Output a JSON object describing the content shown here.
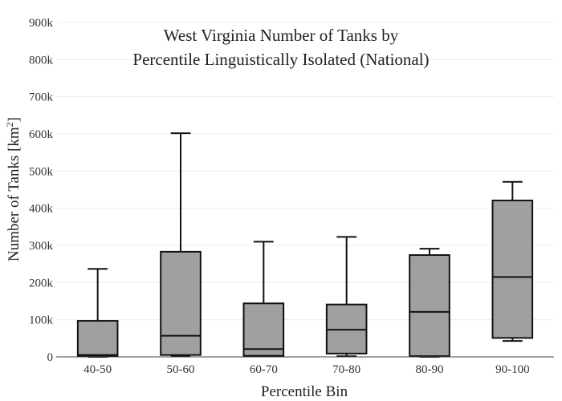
{
  "chart_data": {
    "type": "box",
    "title_lines": [
      "West Virginia Number of Tanks by",
      "Percentile Linguistically Isolated (National)"
    ],
    "xlabel": "Percentile Bin",
    "ylabel_main": "Number of Tanks  [km",
    "ylabel_sup": "2",
    "ylabel_end": "]",
    "ylim": [
      0,
      900000
    ],
    "y_ticks": [
      {
        "value": 0,
        "label": "0"
      },
      {
        "value": 100000,
        "label": "100k"
      },
      {
        "value": 200000,
        "label": "200k"
      },
      {
        "value": 300000,
        "label": "300k"
      },
      {
        "value": 400000,
        "label": "400k"
      },
      {
        "value": 500000,
        "label": "500k"
      },
      {
        "value": 600000,
        "label": "600k"
      },
      {
        "value": 700000,
        "label": "700k"
      },
      {
        "value": 800000,
        "label": "800k"
      },
      {
        "value": 900000,
        "label": "900k"
      }
    ],
    "grid": true,
    "box_color": "#a0a0a0",
    "categories": [
      "40-50",
      "50-60",
      "60-70",
      "70-80",
      "80-90",
      "90-100"
    ],
    "boxes": [
      {
        "category": "40-50",
        "min": 0,
        "q1": 2000,
        "median": 5000,
        "q3": 97000,
        "max": 237000
      },
      {
        "category": "50-60",
        "min": 2000,
        "q1": 5000,
        "median": 57000,
        "q3": 283000,
        "max": 602000
      },
      {
        "category": "60-70",
        "min": 2000,
        "q1": 3000,
        "median": 21000,
        "q3": 144000,
        "max": 310000
      },
      {
        "category": "70-80",
        "min": 2000,
        "q1": 9000,
        "median": 73000,
        "q3": 141000,
        "max": 323000
      },
      {
        "category": "80-90",
        "min": 0,
        "q1": 2000,
        "median": 121000,
        "q3": 274000,
        "max": 291000
      },
      {
        "category": "90-100",
        "min": 43000,
        "q1": 51000,
        "median": 215000,
        "q3": 421000,
        "max": 471000
      }
    ]
  }
}
